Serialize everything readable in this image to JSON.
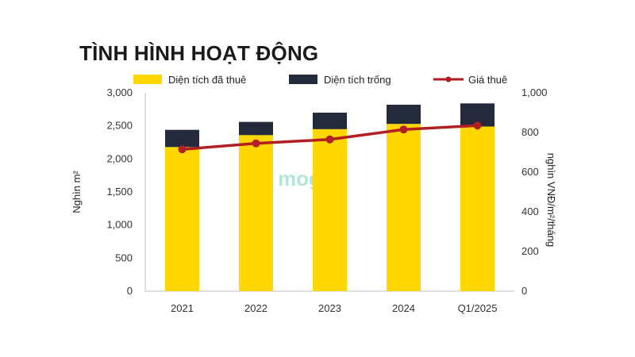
{
  "header": {
    "title": "TÌNH HÌNH HOẠT ĐỘNG"
  },
  "watermark": {
    "text": "mogi"
  },
  "colors": {
    "leased": "#FFD700",
    "vacant": "#252A3A",
    "rent": "#B21E22"
  },
  "chart_data": {
    "type": "bar",
    "stacked": true,
    "categories": [
      "2021",
      "2022",
      "2023",
      "2024",
      "Q1/2025"
    ],
    "series": [
      {
        "name": "Diện tích đã thuê",
        "axis": "left",
        "values": [
          2180,
          2360,
          2450,
          2530,
          2490
        ]
      },
      {
        "name": "Diện tích trống",
        "axis": "left",
        "values": [
          260,
          200,
          250,
          290,
          350
        ]
      },
      {
        "name": "Giá thuê",
        "type": "line",
        "axis": "right",
        "values": [
          715,
          745,
          765,
          815,
          835
        ]
      }
    ],
    "y_left": {
      "label": "Nghìn m²",
      "min": 0,
      "max": 3000,
      "ticks": [
        "0",
        "500",
        "1,000",
        "1,500",
        "2,000",
        "2,500",
        "3,000"
      ],
      "tick_values": [
        0,
        500,
        1000,
        1500,
        2000,
        2500,
        3000
      ]
    },
    "y_right": {
      "label": "nghìn VNĐ/m²/tháng",
      "min": 0,
      "max": 1000,
      "ticks": [
        "0",
        "200",
        "400",
        "600",
        "800",
        "1,000"
      ],
      "tick_values": [
        0,
        200,
        400,
        600,
        800,
        1000
      ]
    },
    "legend_position": "top",
    "grid": false
  }
}
